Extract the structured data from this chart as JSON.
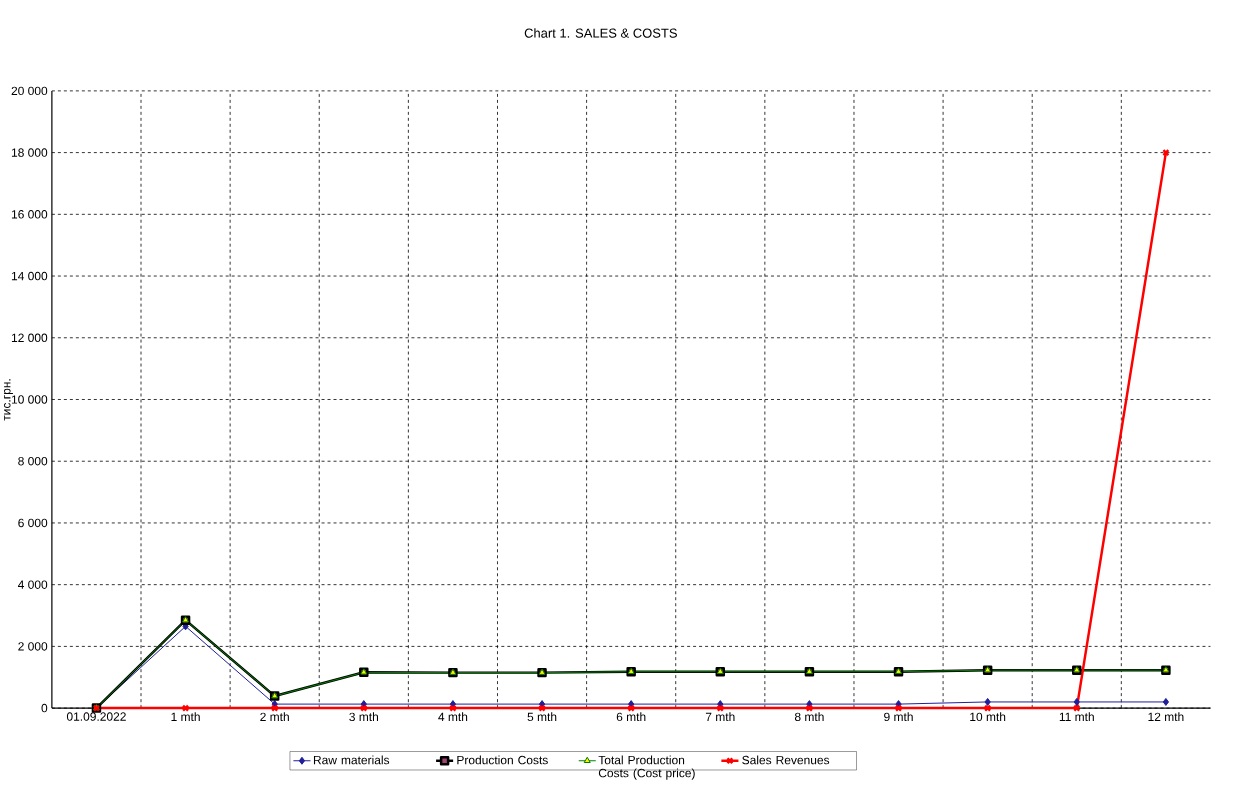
{
  "chart_data": {
    "type": "line",
    "title": "Chart 1. SALES & COSTS",
    "ylabel": "тис.грн.",
    "categories": [
      "01.09.2022",
      "1 mth",
      "2 mth",
      "3 mth",
      "4 mth",
      "5 mth",
      "6 mth",
      "7 mth",
      "8 mth",
      "9 mth",
      "10 mth",
      "11 mth",
      "12 mth"
    ],
    "series": [
      {
        "name": "Raw materials",
        "color": "#1f1f9a",
        "marker": "diamond",
        "values": [
          0,
          2650,
          130,
          130,
          130,
          130,
          130,
          130,
          130,
          130,
          200,
          200,
          200
        ]
      },
      {
        "name": "Production Costs",
        "color": "#000000",
        "marker": "square",
        "values": [
          0,
          2850,
          390,
          1160,
          1150,
          1150,
          1180,
          1180,
          1180,
          1180,
          1230,
          1230,
          1230
        ]
      },
      {
        "name": "Total Production Costs (Cost price)",
        "color": "#008000",
        "marker": "triangle",
        "values": [
          0,
          2850,
          390,
          1160,
          1150,
          1150,
          1180,
          1180,
          1180,
          1180,
          1230,
          1230,
          1230
        ]
      },
      {
        "name": "Sales Revenues",
        "color": "#ff0000",
        "marker": "cross",
        "values": [
          0,
          0,
          0,
          0,
          0,
          0,
          0,
          0,
          0,
          0,
          0,
          0,
          18000
        ]
      }
    ],
    "ylim": [
      0,
      20000
    ],
    "yticks": [
      0,
      {
        "value": 2000,
        "label": "2 000"
      },
      {
        "value": 4000,
        "label": "4 000"
      },
      {
        "value": 6000,
        "label": "6 000"
      },
      {
        "value": 8000,
        "label": "8 000"
      },
      {
        "value": 10000,
        "label": "10 000"
      },
      {
        "value": 12000,
        "label": "12 000"
      },
      {
        "value": 14000,
        "label": "14 000"
      },
      {
        "value": 16000,
        "label": "16 000"
      },
      {
        "value": 18000,
        "label": "18 000"
      },
      {
        "value": 20000,
        "label": "20 000"
      }
    ],
    "grid": true,
    "legend": "bottom",
    "line_style": "solid"
  }
}
